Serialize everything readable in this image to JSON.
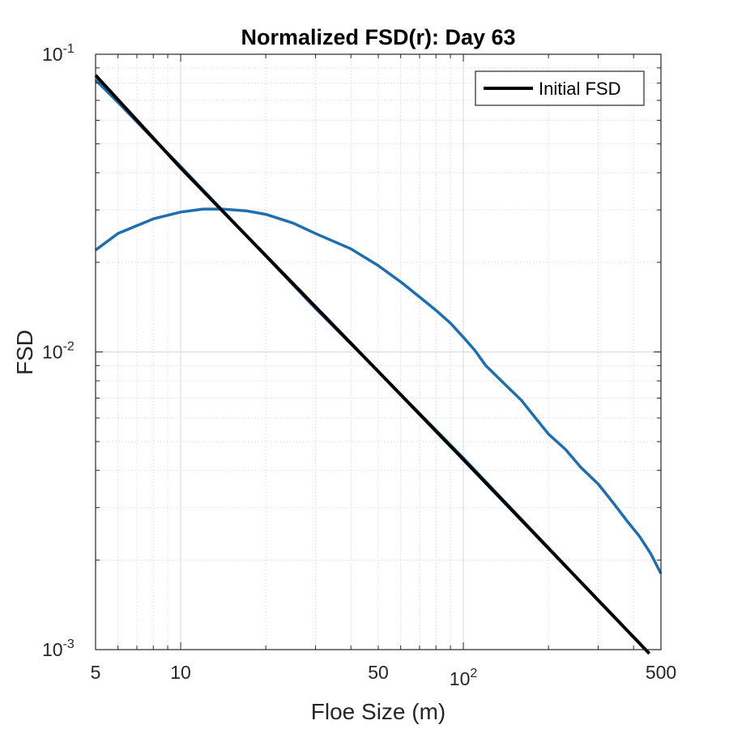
{
  "chart_data": {
    "type": "line",
    "title": "Normalized FSD(r): Day 63",
    "xlabel": "Floe Size (m)",
    "ylabel": "FSD",
    "xscale": "log",
    "yscale": "log",
    "xlim": [
      5,
      500
    ],
    "ylim": [
      0.001,
      0.1
    ],
    "grid": true,
    "minor_grid": true,
    "legend_position": "top-right",
    "x_ticks": [
      {
        "value": 5,
        "label": "5"
      },
      {
        "value": 10,
        "label": "10"
      },
      {
        "value": 50,
        "label": "50"
      },
      {
        "value": 100,
        "label": "10",
        "exponent": "2"
      },
      {
        "value": 500,
        "label": "500"
      }
    ],
    "y_ticks": [
      {
        "value": 0.001,
        "label": "10",
        "exponent": "-3"
      },
      {
        "value": 0.01,
        "label": "10",
        "exponent": "-2"
      },
      {
        "value": 0.1,
        "label": "10",
        "exponent": "-1"
      }
    ],
    "series": [
      {
        "name": "",
        "color": "#1f6fb0",
        "points": [
          [
            5,
            0.082
          ],
          [
            6,
            0.069
          ],
          [
            8,
            0.052
          ],
          [
            10,
            0.042
          ],
          [
            12,
            0.035
          ],
          [
            15,
            0.028
          ],
          [
            20,
            0.021
          ],
          [
            30,
            0.014
          ],
          [
            50,
            0.0086
          ],
          [
            100,
            0.0044
          ],
          [
            200,
            0.0022
          ],
          [
            300,
            0.00146
          ],
          [
            450,
            0.00098
          ]
        ]
      },
      {
        "name": "",
        "color": "#1f6fb0",
        "points": [
          [
            5,
            0.022
          ],
          [
            6,
            0.025
          ],
          [
            8,
            0.028
          ],
          [
            10,
            0.0295
          ],
          [
            12,
            0.0302
          ],
          [
            14,
            0.0302
          ],
          [
            17,
            0.0298
          ],
          [
            20,
            0.029
          ],
          [
            25,
            0.0271
          ],
          [
            30,
            0.025
          ],
          [
            40,
            0.0222
          ],
          [
            50,
            0.0195
          ],
          [
            60,
            0.0172
          ],
          [
            70,
            0.0153
          ],
          [
            80,
            0.0138
          ],
          [
            90,
            0.0125
          ],
          [
            100,
            0.0112
          ],
          [
            110,
            0.0101
          ],
          [
            120,
            0.009
          ],
          [
            140,
            0.0078
          ],
          [
            160,
            0.0069
          ],
          [
            180,
            0.006
          ],
          [
            200,
            0.0053
          ],
          [
            230,
            0.0047
          ],
          [
            260,
            0.0041
          ],
          [
            300,
            0.0036
          ],
          [
            340,
            0.0031
          ],
          [
            380,
            0.0027
          ],
          [
            420,
            0.0024
          ],
          [
            460,
            0.0021
          ],
          [
            500,
            0.0018
          ]
        ]
      },
      {
        "name": "Initial FSD",
        "color": "#000000",
        "points": [
          [
            5,
            0.085
          ],
          [
            10,
            0.0415
          ],
          [
            50,
            0.0086
          ],
          [
            100,
            0.00435
          ],
          [
            455,
            0.00097
          ]
        ]
      }
    ]
  }
}
